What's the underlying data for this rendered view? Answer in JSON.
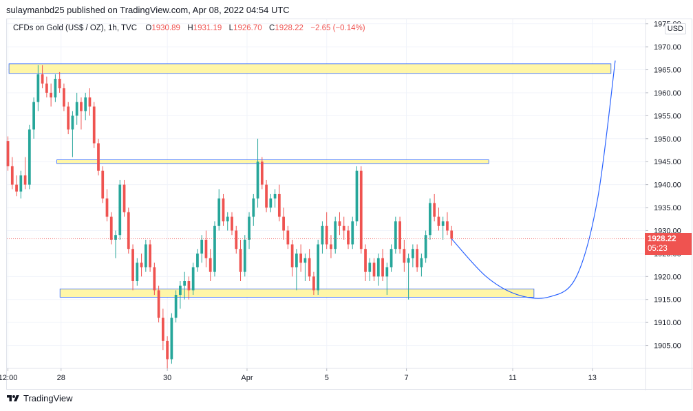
{
  "header": {
    "publish_line": "sulaymanbd25 published on TradingView.com, Apr 08, 2022 04:54 UTC"
  },
  "legend": {
    "symbol": "CFDs on Gold (US$ / OZ), 1h, TVC",
    "o_label": "O",
    "o_value": "1930.89",
    "h_label": "H",
    "h_value": "1931.19",
    "l_label": "L",
    "l_value": "1926.70",
    "c_label": "C",
    "c_value": "1928.22",
    "change": "−2.65 (−0.14%)"
  },
  "currency_badge": "USD",
  "last_price": {
    "value": "1928.22",
    "countdown": "05:23"
  },
  "brand": {
    "name": "TradingView",
    "logo_icon": "tradingview-logo-icon"
  },
  "colors": {
    "up": "#26a69a",
    "down": "#ef5350",
    "zone_fill": "#fff59d",
    "zone_stroke": "#2962ff",
    "projection": "#2962ff",
    "price_tag": "#ef5350",
    "legend_value": "#ef5350"
  },
  "chart_data": {
    "type": "candlestick",
    "ylim": [
      1900,
      1976
    ],
    "y_ticks": [
      1905,
      1910,
      1915,
      1920,
      1925,
      1930,
      1935,
      1940,
      1945,
      1950,
      1955,
      1960,
      1965,
      1970,
      1975
    ],
    "y_tick_labels": [
      "1905.00",
      "1910.00",
      "1915.00",
      "1920.00",
      "1925.00",
      "1930.00",
      "1935.00",
      "1940.00",
      "1945.00",
      "1950.00",
      "1955.00",
      "1960.00",
      "1965.00",
      "1970.00",
      "1975.00"
    ],
    "x_ticks": [
      "12:00",
      "28",
      "30",
      "Apr",
      "5",
      "7",
      "11",
      "13"
    ],
    "x_tick_day_index": [
      0,
      1,
      3,
      4.5,
      6,
      7.5,
      9.5,
      11
    ],
    "x_range_days": [
      -0.02,
      12.0
    ],
    "candles": [
      [
        1949.5,
        1950.5,
        1943,
        1944
      ],
      [
        1944,
        1946,
        1939,
        1940
      ],
      [
        1940,
        1942,
        1937.5,
        1938.5
      ],
      [
        1938.5,
        1943,
        1937,
        1942
      ],
      [
        1942,
        1946,
        1939,
        1940
      ],
      [
        1940,
        1953,
        1939,
        1952
      ],
      [
        1952,
        1959,
        1950,
        1958
      ],
      [
        1958,
        1966,
        1956,
        1964
      ],
      [
        1964,
        1966,
        1961,
        1962
      ],
      [
        1962,
        1963.5,
        1959,
        1960
      ],
      [
        1960,
        1962,
        1957,
        1959
      ],
      [
        1959,
        1964,
        1958,
        1963
      ],
      [
        1963,
        1964.5,
        1960,
        1961
      ],
      [
        1961,
        1962,
        1956,
        1957
      ],
      [
        1957,
        1958,
        1951,
        1952
      ],
      [
        1952,
        1956,
        1946,
        1955
      ],
      [
        1955,
        1960,
        1953,
        1958
      ],
      [
        1958,
        1959,
        1952,
        1956
      ],
      [
        1956,
        1960,
        1954,
        1959
      ],
      [
        1959,
        1961,
        1955,
        1957
      ],
      [
        1957,
        1958,
        1948,
        1949
      ],
      [
        1949,
        1950,
        1942,
        1943
      ],
      [
        1943,
        1944,
        1936,
        1937
      ],
      [
        1937,
        1939,
        1932,
        1933
      ],
      [
        1933,
        1934,
        1927,
        1928
      ],
      [
        1928,
        1930,
        1924,
        1929
      ],
      [
        1929,
        1941,
        1928,
        1940
      ],
      [
        1940,
        1941,
        1933,
        1934
      ],
      [
        1934,
        1935,
        1925,
        1926
      ],
      [
        1926,
        1927,
        1917,
        1919
      ],
      [
        1919,
        1924,
        1918,
        1923
      ],
      [
        1923,
        1925,
        1920,
        1922
      ],
      [
        1922,
        1928,
        1921,
        1927
      ],
      [
        1927,
        1928,
        1921,
        1922
      ],
      [
        1922,
        1923,
        1916,
        1917
      ],
      [
        1917,
        1918,
        1910,
        1911
      ],
      [
        1911,
        1913,
        1904,
        1906
      ],
      [
        1906,
        1907,
        1900,
        1902
      ],
      [
        1902,
        1912,
        1901,
        1911
      ],
      [
        1911,
        1917,
        1910,
        1916
      ],
      [
        1916,
        1919,
        1913,
        1918
      ],
      [
        1918,
        1921,
        1915,
        1919
      ],
      [
        1919,
        1920,
        1915,
        1917
      ],
      [
        1917,
        1923,
        1916,
        1922
      ],
      [
        1922,
        1926,
        1921,
        1925
      ],
      [
        1925,
        1929,
        1923,
        1928
      ],
      [
        1928,
        1930,
        1922,
        1924
      ],
      [
        1924,
        1926,
        1919,
        1921
      ],
      [
        1921,
        1932,
        1920,
        1931
      ],
      [
        1931,
        1939,
        1930,
        1937
      ],
      [
        1937,
        1938,
        1931,
        1932
      ],
      [
        1932,
        1934,
        1930,
        1933
      ],
      [
        1933,
        1934,
        1929,
        1930
      ],
      [
        1930,
        1931,
        1925,
        1926
      ],
      [
        1926,
        1928,
        1919,
        1921
      ],
      [
        1921,
        1929,
        1920,
        1928
      ],
      [
        1928,
        1934,
        1926,
        1933
      ],
      [
        1933,
        1938,
        1931,
        1937
      ],
      [
        1937,
        1950,
        1935,
        1945
      ],
      [
        1945,
        1946,
        1939,
        1940
      ],
      [
        1940,
        1941,
        1934,
        1935
      ],
      [
        1935,
        1938,
        1934,
        1937
      ],
      [
        1937,
        1939,
        1935,
        1938
      ],
      [
        1938,
        1940,
        1932,
        1933
      ],
      [
        1933,
        1935,
        1928,
        1930
      ],
      [
        1930,
        1931,
        1926,
        1927
      ],
      [
        1927,
        1928,
        1920,
        1922
      ],
      [
        1922,
        1926,
        1917,
        1925
      ],
      [
        1925,
        1927,
        1921,
        1923
      ],
      [
        1923,
        1925,
        1919,
        1924
      ],
      [
        1924,
        1926,
        1919,
        1920
      ],
      [
        1920,
        1921,
        1916,
        1917
      ],
      [
        1917,
        1928,
        1916,
        1927
      ],
      [
        1927,
        1932,
        1925,
        1931
      ],
      [
        1931,
        1934,
        1926,
        1927
      ],
      [
        1927,
        1929,
        1924,
        1926
      ],
      [
        1926,
        1933,
        1925,
        1932
      ],
      [
        1932,
        1934,
        1929,
        1931
      ],
      [
        1931,
        1933,
        1928,
        1930
      ],
      [
        1930,
        1931,
        1926,
        1927
      ],
      [
        1927,
        1933,
        1926,
        1932
      ],
      [
        1932,
        1944,
        1931,
        1943
      ],
      [
        1943,
        1944,
        1925,
        1926
      ],
      [
        1926,
        1927,
        1919,
        1921
      ],
      [
        1921,
        1924,
        1919,
        1923
      ],
      [
        1923,
        1924,
        1919,
        1920
      ],
      [
        1920,
        1925,
        1918,
        1924
      ],
      [
        1924,
        1926,
        1919,
        1920
      ],
      [
        1920,
        1923,
        1916,
        1922
      ],
      [
        1922,
        1927,
        1921,
        1926
      ],
      [
        1926,
        1933,
        1925,
        1932
      ],
      [
        1932,
        1933,
        1925,
        1926
      ],
      [
        1926,
        1928,
        1921,
        1923
      ],
      [
        1923,
        1925,
        1915,
        1924
      ],
      [
        1924,
        1927,
        1922,
        1926
      ],
      [
        1926,
        1927,
        1921,
        1922
      ],
      [
        1922,
        1925,
        1920,
        1924
      ],
      [
        1924,
        1930,
        1923,
        1929
      ],
      [
        1929,
        1937,
        1928,
        1936
      ],
      [
        1936,
        1938,
        1932,
        1933
      ],
      [
        1933,
        1935,
        1930,
        1931
      ],
      [
        1931,
        1933,
        1928,
        1932
      ],
      [
        1932,
        1934,
        1929,
        1930
      ],
      [
        1930,
        1931,
        1926.7,
        1928.22
      ]
    ],
    "zones": [
      {
        "day_start": 0.02,
        "day_end": 11.35,
        "top": 1966.3,
        "bottom": 1964.2
      },
      {
        "day_start": 0.92,
        "day_end": 9.05,
        "top": 1945.4,
        "bottom": 1944.6
      },
      {
        "day_start": 0.98,
        "day_end": 9.9,
        "top": 1917.3,
        "bottom": 1915.5
      }
    ],
    "projection": {
      "points": [
        [
          8.35,
          1928.2
        ],
        [
          9.0,
          1920.0
        ],
        [
          9.6,
          1916.0
        ],
        [
          10.2,
          1915.6
        ],
        [
          10.7,
          1920.0
        ],
        [
          11.1,
          1937.0
        ],
        [
          11.43,
          1967.0
        ]
      ]
    },
    "current_price": 1928.22
  }
}
